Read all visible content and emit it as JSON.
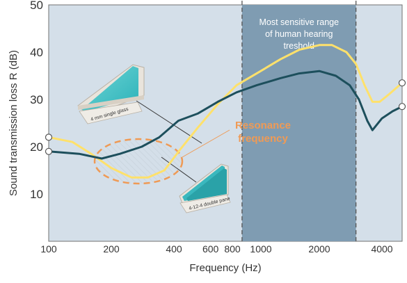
{
  "chart_data": {
    "type": "line",
    "xlabel": "Frequency (Hz)",
    "ylabel": "Sound transmission loss R (dB)",
    "xscale": "log",
    "xlim": [
      100,
      5000
    ],
    "ylim": [
      0,
      50
    ],
    "x_ticks": [
      {
        "value": 100,
        "label": "100"
      },
      {
        "value": 200,
        "label": "200"
      },
      {
        "value": 400,
        "label": "400"
      },
      {
        "value": 600,
        "label": "600"
      },
      {
        "value": 800,
        "label": "800"
      },
      {
        "value": 1000,
        "label": "1000"
      },
      {
        "value": 2000,
        "label": "2000"
      },
      {
        "value": 4000,
        "label": "4000"
      }
    ],
    "y_ticks": [
      10,
      20,
      30,
      40,
      50
    ],
    "series": [
      {
        "color": "#ffe16b",
        "points": [
          [
            100,
            22
          ],
          [
            130,
            21
          ],
          [
            160,
            18.5
          ],
          [
            200,
            15.5
          ],
          [
            250,
            13.5
          ],
          [
            300,
            13.5
          ],
          [
            360,
            15
          ],
          [
            430,
            19.5
          ],
          [
            520,
            24
          ],
          [
            650,
            29
          ],
          [
            800,
            33
          ],
          [
            1000,
            35.5
          ],
          [
            1300,
            38.5
          ],
          [
            1600,
            40.5
          ],
          [
            2000,
            41.5
          ],
          [
            2300,
            41.5
          ],
          [
            2700,
            40
          ],
          [
            3000,
            37.5
          ],
          [
            3300,
            33
          ],
          [
            3600,
            29.5
          ],
          [
            3900,
            29.5
          ],
          [
            4300,
            31
          ],
          [
            5000,
            33.5
          ]
        ]
      },
      {
        "color": "#1d4f5c",
        "points": [
          [
            100,
            19
          ],
          [
            140,
            18.5
          ],
          [
            180,
            17.5
          ],
          [
            220,
            18.5
          ],
          [
            280,
            20
          ],
          [
            340,
            22
          ],
          [
            420,
            25.5
          ],
          [
            520,
            27
          ],
          [
            650,
            29.5
          ],
          [
            800,
            31.5
          ],
          [
            1000,
            33
          ],
          [
            1300,
            34.5
          ],
          [
            1600,
            35.5
          ],
          [
            2000,
            36
          ],
          [
            2400,
            35
          ],
          [
            2800,
            33
          ],
          [
            3100,
            30
          ],
          [
            3400,
            25.5
          ],
          [
            3600,
            23.5
          ],
          [
            4000,
            26
          ],
          [
            4500,
            27.5
          ],
          [
            5000,
            28.5
          ]
        ]
      }
    ],
    "highlight_band": {
      "x_from": 850,
      "x_to": 3000,
      "label": "Most sensitive range of human hearing treshold"
    },
    "annotations": [
      {
        "text": "Resonance\nfrequency",
        "color": "#ef9a55"
      },
      {
        "text": "4 mm single glass"
      },
      {
        "text": "4-12-4 double pane"
      }
    ],
    "grid": false,
    "legend": "none"
  }
}
